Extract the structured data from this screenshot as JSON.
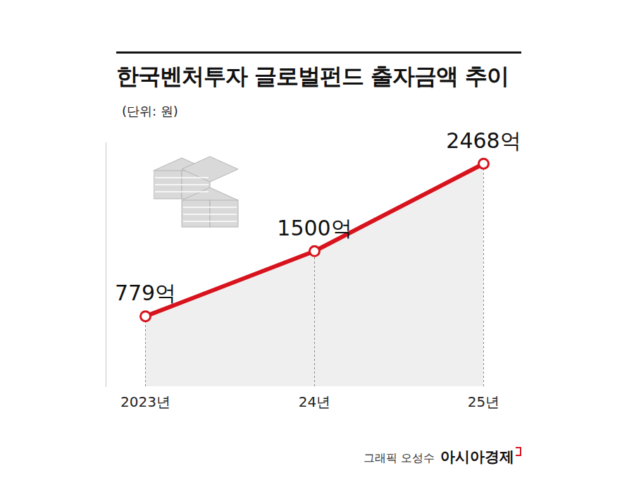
{
  "chart_data": {
    "type": "line",
    "title": "한국벤처투자 글로벌펀드 출자금액 추이",
    "subtitle": "(단위: 원)",
    "categories": [
      "2023년",
      "24년",
      "25년"
    ],
    "values": [
      779,
      1500,
      2468
    ],
    "value_labels": [
      "779억",
      "1500억",
      "2468억"
    ],
    "color": "#d7141e",
    "ylim": [
      0,
      2700
    ],
    "data_labels": true,
    "tick_labels": "x",
    "marker": "circle",
    "caption": "그래픽 오성수",
    "source": "아시아경제"
  }
}
